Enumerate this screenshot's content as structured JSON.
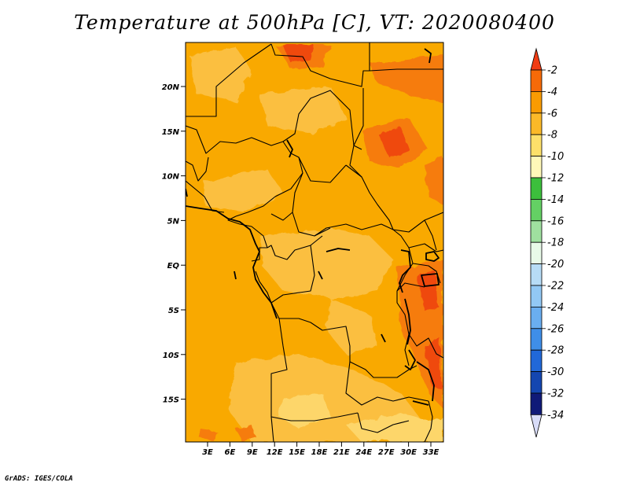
{
  "title": "Temperature at 500hPa [C], VT: 2020080400",
  "credit": "GrADS: IGES/COLA",
  "map": {
    "lat_ticks": [
      "20N",
      "15N",
      "10N",
      "5N",
      "EQ",
      "5S",
      "10S",
      "15S"
    ],
    "lon_ticks": [
      "3E",
      "6E",
      "9E",
      "12E",
      "15E",
      "18E",
      "21E",
      "24E",
      "27E",
      "30E",
      "33E"
    ],
    "colors": {
      "base": "#f9a900",
      "warm_light": "#fbbf3f",
      "warm_lighter": "#fdd66a",
      "hot": "#f67b0a",
      "hottest": "#ef4a10",
      "boundary": "#000000"
    }
  },
  "colorbar": {
    "labels": [
      "-2",
      "-4",
      "-6",
      "-8",
      "-10",
      "-12",
      "-14",
      "-16",
      "-18",
      "-20",
      "-22",
      "-24",
      "-26",
      "-28",
      "-30",
      "-32",
      "-34"
    ],
    "colors": [
      "#f03c14",
      "#f66a08",
      "#f99b02",
      "#fbb928",
      "#fde06a",
      "#fff8b8",
      "#3cbf3c",
      "#64d064",
      "#9fe09f",
      "#e8fae8",
      "#b7dcf6",
      "#92c8f4",
      "#6aaef0",
      "#3f8ee8",
      "#2168d8",
      "#1446b0",
      "#101a78",
      "#d8dcf8"
    ]
  }
}
